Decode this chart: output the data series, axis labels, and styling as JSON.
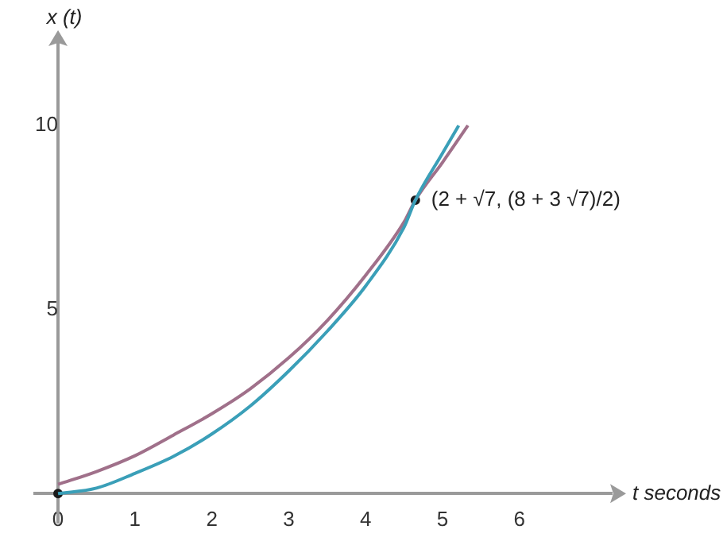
{
  "chart_data": {
    "type": "line",
    "xlabel": "t seconds",
    "ylabel": "x (t)",
    "xlim": [
      -0.3,
      7.2
    ],
    "ylim": [
      -0.8,
      12.2
    ],
    "xticks": [
      0,
      1,
      2,
      3,
      4,
      5,
      6
    ],
    "yticks": [
      5,
      10
    ],
    "grid": false,
    "legend": false,
    "marker": "none",
    "series": [
      {
        "color": "#3a9fb8",
        "x": [
          0,
          0.5,
          1,
          1.5,
          2,
          2.5,
          3,
          3.5,
          4,
          4.5,
          4.646,
          5,
          5.21
        ],
        "values": [
          0,
          0.15,
          0.55,
          1.01,
          1.62,
          2.38,
          3.33,
          4.41,
          5.64,
          7.24,
          7.97,
          9.25,
          10
        ]
      },
      {
        "color": "#a0708a",
        "x": [
          0,
          0.5,
          1,
          1.5,
          2,
          2.5,
          3,
          3.5,
          4,
          4.5,
          4.646,
          5,
          5.33
        ],
        "values": [
          0.25,
          0.6,
          1.03,
          1.59,
          2.17,
          2.85,
          3.69,
          4.7,
          5.93,
          7.38,
          7.97,
          9.0,
          10
        ]
      },
      {
        "type": "scatter",
        "color": "#1a1a1a",
        "marker": "circle",
        "x": [
          0,
          4.646
        ],
        "values": [
          0,
          7.97
        ]
      }
    ],
    "annotations": [
      {
        "text": "(2 + √7, (8 + 3 √7)/2)",
        "x": 4.646,
        "y": 7.97
      }
    ]
  }
}
